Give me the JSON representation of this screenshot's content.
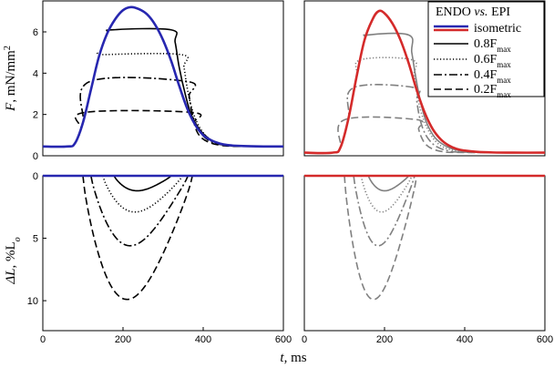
{
  "chart_data": [
    {
      "type": "line",
      "panel": "top-left",
      "ylabel": "F, mN/mm2",
      "ylabel_parts": [
        "F",
        ", mN/mm",
        "2"
      ],
      "xlim": [
        0,
        600
      ],
      "ylim": [
        0,
        7.5
      ],
      "yticks": [
        0,
        2,
        4,
        6
      ],
      "ytick_labels": [
        "0",
        "2",
        "4",
        "6"
      ],
      "series": [
        {
          "name": "isometric",
          "color": "#2727b0",
          "style": "solid",
          "x": [
            0,
            60,
            80,
            100,
            120,
            140,
            160,
            180,
            200,
            220,
            240,
            260,
            280,
            300,
            320,
            340,
            360,
            380,
            400,
            420,
            440,
            460,
            500,
            550,
            600
          ],
          "y": [
            0.45,
            0.45,
            0.6,
            1.6,
            3.2,
            4.8,
            5.9,
            6.6,
            7.05,
            7.2,
            7.1,
            6.85,
            6.35,
            5.6,
            4.6,
            3.4,
            2.3,
            1.5,
            1.0,
            0.75,
            0.6,
            0.52,
            0.47,
            0.45,
            0.45
          ]
        },
        {
          "name": "0.8Fmax",
          "color": "#000000",
          "style": "solid",
          "x": [
            0,
            60,
            80,
            100,
            120,
            140,
            160,
            175,
            320,
            330,
            340,
            355,
            370,
            390,
            410,
            430,
            460,
            500,
            600
          ],
          "y": [
            0.45,
            0.45,
            0.6,
            1.6,
            3.2,
            4.8,
            5.9,
            6.1,
            6.1,
            5.5,
            4.3,
            3.0,
            2.0,
            1.3,
            0.9,
            0.65,
            0.5,
            0.46,
            0.45
          ]
        },
        {
          "name": "0.6Fmax",
          "color": "#000000",
          "style": "dotted",
          "x": [
            0,
            60,
            80,
            100,
            120,
            140,
            155,
            345,
            352,
            360,
            370,
            385,
            405,
            430,
            460,
            500,
            600
          ],
          "y": [
            0.45,
            0.45,
            0.6,
            1.6,
            3.2,
            4.8,
            4.9,
            4.9,
            4.3,
            3.3,
            2.4,
            1.6,
            1.0,
            0.65,
            0.5,
            0.46,
            0.45
          ]
        },
        {
          "name": "0.4Fmax",
          "color": "#000000",
          "style": "dashdot",
          "x": [
            0,
            60,
            80,
            100,
            118,
            360,
            365,
            372,
            382,
            398,
            420,
            450,
            490,
            600
          ],
          "y": [
            0.45,
            0.45,
            0.6,
            1.6,
            3.6,
            3.6,
            2.9,
            2.1,
            1.5,
            1.0,
            0.68,
            0.52,
            0.46,
            0.45
          ]
        },
        {
          "name": "0.2Fmax",
          "color": "#000000",
          "style": "dashed",
          "x": [
            0,
            60,
            80,
            95,
            105,
            372,
            377,
            385,
            397,
            415,
            440,
            480,
            600
          ],
          "y": [
            0.45,
            0.45,
            0.6,
            1.3,
            2.1,
            2.1,
            1.6,
            1.15,
            0.85,
            0.65,
            0.52,
            0.46,
            0.45
          ]
        }
      ]
    },
    {
      "type": "line",
      "panel": "top-right",
      "xlim": [
        0,
        600
      ],
      "ylim": [
        0,
        7.5
      ],
      "series": [
        {
          "name": "isometric",
          "color": "#d42a2a",
          "style": "solid",
          "x": [
            0,
            70,
            90,
            110,
            130,
            150,
            170,
            185,
            200,
            220,
            240,
            260,
            280,
            300,
            320,
            340,
            360,
            380,
            400,
            430,
            470,
            520,
            600
          ],
          "y": [
            0.15,
            0.15,
            0.4,
            1.8,
            3.8,
            5.6,
            6.6,
            7.0,
            6.9,
            6.4,
            5.6,
            4.5,
            3.2,
            2.1,
            1.3,
            0.8,
            0.5,
            0.33,
            0.25,
            0.19,
            0.16,
            0.15,
            0.15
          ]
        },
        {
          "name": "0.8Fmax",
          "color": "#808080",
          "style": "solid",
          "x": [
            0,
            70,
            90,
            110,
            130,
            150,
            158,
            260,
            268,
            278,
            290,
            305,
            325,
            350,
            380,
            420,
            600
          ],
          "y": [
            0.15,
            0.15,
            0.4,
            1.8,
            3.8,
            5.6,
            5.85,
            5.85,
            5.0,
            3.8,
            2.6,
            1.6,
            0.9,
            0.5,
            0.28,
            0.18,
            0.15
          ]
        },
        {
          "name": "0.6Fmax",
          "color": "#808080",
          "style": "dotted",
          "x": [
            0,
            70,
            90,
            110,
            130,
            141,
            268,
            274,
            282,
            293,
            310,
            330,
            355,
            390,
            430,
            600
          ],
          "y": [
            0.15,
            0.15,
            0.4,
            1.8,
            3.8,
            4.65,
            4.65,
            3.9,
            2.9,
            2.0,
            1.2,
            0.65,
            0.35,
            0.2,
            0.16,
            0.15
          ]
        },
        {
          "name": "0.4Fmax",
          "color": "#808080",
          "style": "dashdot",
          "x": [
            0,
            70,
            90,
            110,
            123,
            275,
            280,
            287,
            297,
            312,
            332,
            360,
            400,
            600
          ],
          "y": [
            0.15,
            0.15,
            0.4,
            1.8,
            3.3,
            3.3,
            2.7,
            1.9,
            1.25,
            0.75,
            0.42,
            0.24,
            0.17,
            0.15
          ]
        },
        {
          "name": "0.2Fmax",
          "color": "#808080",
          "style": "dashed",
          "x": [
            0,
            70,
            90,
            101,
            280,
            285,
            292,
            303,
            320,
            345,
            380,
            600
          ],
          "y": [
            0.15,
            0.15,
            0.4,
            1.75,
            1.75,
            1.3,
            0.9,
            0.55,
            0.33,
            0.2,
            0.16,
            0.15
          ]
        }
      ],
      "legend": {
        "placement": "top-right",
        "title_parts": [
          "ENDO ",
          "vs.",
          " EPI"
        ],
        "entries": [
          {
            "label": "isometric",
            "base": "isometric",
            "sub": ""
          },
          {
            "label": "0.8Fmax",
            "base": "0.8F",
            "sub": "max"
          },
          {
            "label": "0.6Fmax",
            "base": "0.6F",
            "sub": "max"
          },
          {
            "label": "0.4Fmax",
            "base": "0.4F",
            "sub": "max"
          },
          {
            "label": "0.2Fmax",
            "base": "0.2F",
            "sub": "max"
          }
        ]
      }
    },
    {
      "type": "line",
      "panel": "bottom-left",
      "ylabel": "ΔL, %Lo",
      "ylabel_parts": [
        "ΔL",
        ", %L",
        "o"
      ],
      "xlabel": "t, ms",
      "xlabel_parts": [
        "t",
        ", ms"
      ],
      "xlim": [
        0,
        600
      ],
      "ylim": [
        12.4,
        0
      ],
      "yticks": [
        0,
        5,
        10
      ],
      "ytick_labels": [
        "0",
        "5",
        "10"
      ],
      "xticks": [
        0,
        200,
        400,
        600
      ],
      "xtick_labels": [
        "0",
        "200",
        "400",
        "600"
      ],
      "series": [
        {
          "name": "isometric",
          "color": "#2727b0",
          "style": "solid",
          "x": [
            0,
            600
          ],
          "y": [
            0,
            0
          ]
        },
        {
          "name": "0.8Fmax",
          "color": "#000000",
          "style": "solid",
          "shape": "dip",
          "start": 178,
          "end": 320,
          "depth": 1.2,
          "p": 0.8,
          "skew": 0.4
        },
        {
          "name": "0.6Fmax",
          "color": "#000000",
          "style": "dotted",
          "shape": "dip",
          "start": 150,
          "end": 348,
          "depth": 2.9,
          "p": 0.8,
          "skew": 0.4
        },
        {
          "name": "0.4Fmax",
          "color": "#000000",
          "style": "dashdot",
          "shape": "dip",
          "start": 120,
          "end": 362,
          "depth": 5.6,
          "p": 0.85,
          "skew": 0.4
        },
        {
          "name": "0.2Fmax",
          "color": "#000000",
          "style": "dashed",
          "shape": "dip",
          "start": 100,
          "end": 373,
          "depth": 9.9,
          "p": 0.8,
          "skew": 0.4
        }
      ]
    },
    {
      "type": "line",
      "panel": "bottom-right",
      "xlim": [
        0,
        600
      ],
      "ylim": [
        12.4,
        0
      ],
      "xticks": [
        0,
        200,
        400,
        600
      ],
      "xtick_labels": [
        "0",
        "200",
        "400",
        "600"
      ],
      "series": [
        {
          "name": "isometric",
          "color": "#d42a2a",
          "style": "solid",
          "x": [
            0,
            600
          ],
          "y": [
            0,
            0
          ]
        },
        {
          "name": "0.8Fmax",
          "color": "#808080",
          "style": "solid",
          "shape": "dip",
          "start": 160,
          "end": 260,
          "depth": 1.2,
          "p": 0.8,
          "skew": 0.4
        },
        {
          "name": "0.6Fmax",
          "color": "#808080",
          "style": "dotted",
          "shape": "dip",
          "start": 142,
          "end": 268,
          "depth": 2.9,
          "p": 0.8,
          "skew": 0.4
        },
        {
          "name": "0.4Fmax",
          "color": "#808080",
          "style": "dashdot",
          "shape": "dip",
          "start": 123,
          "end": 275,
          "depth": 5.6,
          "p": 0.85,
          "skew": 0.4
        },
        {
          "name": "0.2Fmax",
          "color": "#808080",
          "style": "dashed",
          "shape": "dip",
          "start": 100,
          "end": 280,
          "depth": 9.9,
          "p": 0.8,
          "skew": 0.4
        }
      ]
    }
  ]
}
